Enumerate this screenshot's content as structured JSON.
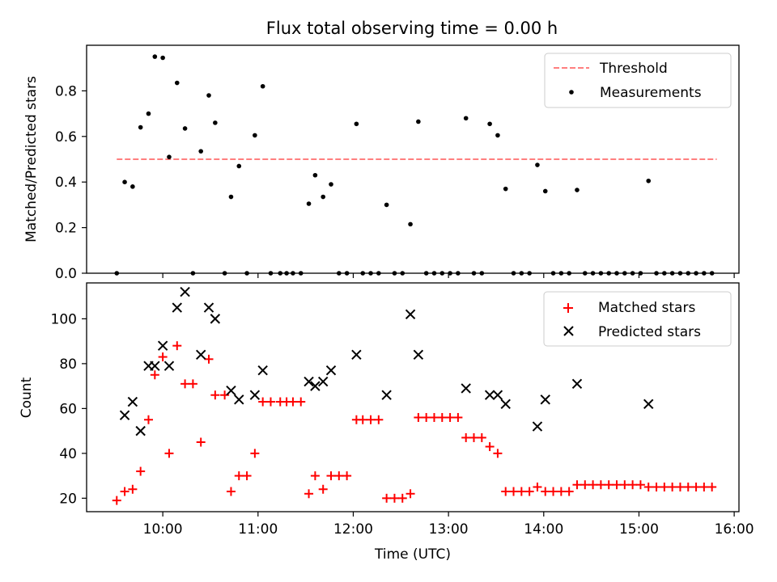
{
  "chart_data": [
    {
      "type": "scatter",
      "title": "Flux total observing time = 0.00 h",
      "xlabel": "",
      "ylabel": "Matched/Predicted stars",
      "ylim": [
        0,
        1.0
      ],
      "yticks": [
        "0.0",
        "0.2",
        "0.4",
        "0.6",
        "0.8"
      ],
      "xlim": [
        "09:12",
        "16:03"
      ],
      "grid": false,
      "legend": "top-right",
      "series": [
        {
          "name": "Threshold",
          "kind": "line",
          "color": "#ff7f7f",
          "style": "dashed",
          "x": [
            "09:31",
            "15:49"
          ],
          "y": [
            0.5,
            0.5
          ]
        },
        {
          "name": "Measurements",
          "kind": "scatter",
          "color": "#000000",
          "marker": "dot",
          "points": [
            [
              "09:31",
              0
            ],
            [
              "09:36",
              0.4
            ],
            [
              "09:41",
              0.38
            ],
            [
              "09:46",
              0.64
            ],
            [
              "09:51",
              0.7
            ],
            [
              "09:55",
              0.95
            ],
            [
              "10:00",
              0.945
            ],
            [
              "10:04",
              0.51
            ],
            [
              "10:09",
              0.835
            ],
            [
              "10:14",
              0.635
            ],
            [
              "10:19",
              0
            ],
            [
              "10:24",
              0.535
            ],
            [
              "10:29",
              0.78
            ],
            [
              "10:33",
              0.66
            ],
            [
              "10:39",
              0
            ],
            [
              "10:43",
              0.335
            ],
            [
              "10:48",
              0.47
            ],
            [
              "10:53",
              0
            ],
            [
              "10:58",
              0.605
            ],
            [
              "11:03",
              0.82
            ],
            [
              "11:08",
              0
            ],
            [
              "11:14",
              0
            ],
            [
              "11:18",
              0
            ],
            [
              "11:22",
              0
            ],
            [
              "11:27",
              0
            ],
            [
              "11:32",
              0.305
            ],
            [
              "11:36",
              0.43
            ],
            [
              "11:41",
              0.335
            ],
            [
              "11:46",
              0.39
            ],
            [
              "11:51",
              0
            ],
            [
              "11:56",
              0
            ],
            [
              "12:02",
              0.655
            ],
            [
              "12:06",
              0
            ],
            [
              "12:11",
              0
            ],
            [
              "12:16",
              0
            ],
            [
              "12:21",
              0.3
            ],
            [
              "12:26",
              0
            ],
            [
              "12:31",
              0
            ],
            [
              "12:36",
              0.215
            ],
            [
              "12:41",
              0.665
            ],
            [
              "12:46",
              0
            ],
            [
              "12:51",
              0
            ],
            [
              "12:56",
              0
            ],
            [
              "13:01",
              0
            ],
            [
              "13:06",
              0
            ],
            [
              "13:11",
              0.68
            ],
            [
              "13:16",
              0
            ],
            [
              "13:21",
              0
            ],
            [
              "13:26",
              0.655
            ],
            [
              "13:31",
              0.605
            ],
            [
              "13:36",
              0.37
            ],
            [
              "13:41",
              0
            ],
            [
              "13:46",
              0
            ],
            [
              "13:51",
              0
            ],
            [
              "13:56",
              0.475
            ],
            [
              "14:01",
              0.36
            ],
            [
              "14:06",
              0
            ],
            [
              "14:11",
              0
            ],
            [
              "14:16",
              0
            ],
            [
              "14:21",
              0.365
            ],
            [
              "14:26",
              0
            ],
            [
              "14:31",
              0
            ],
            [
              "14:36",
              0
            ],
            [
              "14:41",
              0
            ],
            [
              "14:46",
              0
            ],
            [
              "14:51",
              0
            ],
            [
              "14:56",
              0
            ],
            [
              "15:01",
              0
            ],
            [
              "15:06",
              0.405
            ],
            [
              "15:11",
              0
            ],
            [
              "15:16",
              0
            ],
            [
              "15:21",
              0
            ],
            [
              "15:26",
              0
            ],
            [
              "15:31",
              0
            ],
            [
              "15:36",
              0
            ],
            [
              "15:41",
              0
            ],
            [
              "15:46",
              0
            ]
          ]
        }
      ]
    },
    {
      "type": "scatter",
      "title": "",
      "xlabel": "Time (UTC)",
      "ylabel": "Count",
      "ylim": [
        14,
        116
      ],
      "yticks": [
        "20",
        "40",
        "60",
        "80",
        "100"
      ],
      "xlim": [
        "09:12",
        "16:03"
      ],
      "xticks": [
        "10:00",
        "11:00",
        "12:00",
        "13:00",
        "14:00",
        "15:00",
        "16:00"
      ],
      "grid": false,
      "legend": "top-right",
      "series": [
        {
          "name": "Matched stars",
          "kind": "scatter",
          "color": "#ff0000",
          "marker": "plus",
          "points": [
            [
              "09:31",
              19
            ],
            [
              "09:36",
              23
            ],
            [
              "09:41",
              24
            ],
            [
              "09:46",
              32
            ],
            [
              "09:51",
              55
            ],
            [
              "09:55",
              75
            ],
            [
              "10:00",
              83
            ],
            [
              "10:04",
              40
            ],
            [
              "10:09",
              88
            ],
            [
              "10:14",
              71
            ],
            [
              "10:19",
              71
            ],
            [
              "10:24",
              45
            ],
            [
              "10:29",
              82
            ],
            [
              "10:33",
              66
            ],
            [
              "10:39",
              66
            ],
            [
              "10:43",
              23
            ],
            [
              "10:48",
              30
            ],
            [
              "10:53",
              30
            ],
            [
              "10:58",
              40
            ],
            [
              "11:03",
              63
            ],
            [
              "11:08",
              63
            ],
            [
              "11:14",
              63
            ],
            [
              "11:18",
              63
            ],
            [
              "11:22",
              63
            ],
            [
              "11:27",
              63
            ],
            [
              "11:32",
              22
            ],
            [
              "11:36",
              30
            ],
            [
              "11:41",
              24
            ],
            [
              "11:46",
              30
            ],
            [
              "11:51",
              30
            ],
            [
              "11:56",
              30
            ],
            [
              "12:02",
              55
            ],
            [
              "12:06",
              55
            ],
            [
              "12:11",
              55
            ],
            [
              "12:16",
              55
            ],
            [
              "12:21",
              20
            ],
            [
              "12:26",
              20
            ],
            [
              "12:31",
              20
            ],
            [
              "12:36",
              22
            ],
            [
              "12:41",
              56
            ],
            [
              "12:46",
              56
            ],
            [
              "12:51",
              56
            ],
            [
              "12:56",
              56
            ],
            [
              "13:01",
              56
            ],
            [
              "13:06",
              56
            ],
            [
              "13:11",
              47
            ],
            [
              "13:16",
              47
            ],
            [
              "13:21",
              47
            ],
            [
              "13:26",
              43
            ],
            [
              "13:31",
              40
            ],
            [
              "13:36",
              23
            ],
            [
              "13:41",
              23
            ],
            [
              "13:46",
              23
            ],
            [
              "13:51",
              23
            ],
            [
              "13:56",
              25
            ],
            [
              "14:01",
              23
            ],
            [
              "14:06",
              23
            ],
            [
              "14:11",
              23
            ],
            [
              "14:16",
              23
            ],
            [
              "14:21",
              26
            ],
            [
              "14:26",
              26
            ],
            [
              "14:31",
              26
            ],
            [
              "14:36",
              26
            ],
            [
              "14:41",
              26
            ],
            [
              "14:46",
              26
            ],
            [
              "14:51",
              26
            ],
            [
              "14:56",
              26
            ],
            [
              "15:01",
              26
            ],
            [
              "15:06",
              25
            ],
            [
              "15:11",
              25
            ],
            [
              "15:16",
              25
            ],
            [
              "15:21",
              25
            ],
            [
              "15:26",
              25
            ],
            [
              "15:31",
              25
            ],
            [
              "15:36",
              25
            ],
            [
              "15:41",
              25
            ],
            [
              "15:46",
              25
            ]
          ]
        },
        {
          "name": "Predicted stars",
          "kind": "scatter",
          "color": "#000000",
          "marker": "cross",
          "points": [
            [
              "09:36",
              57
            ],
            [
              "09:41",
              63
            ],
            [
              "09:46",
              50
            ],
            [
              "09:51",
              79
            ],
            [
              "09:55",
              79
            ],
            [
              "10:00",
              88
            ],
            [
              "10:04",
              79
            ],
            [
              "10:09",
              105
            ],
            [
              "10:14",
              112
            ],
            [
              "10:24",
              84
            ],
            [
              "10:29",
              105
            ],
            [
              "10:33",
              100
            ],
            [
              "10:43",
              68
            ],
            [
              "10:48",
              64
            ],
            [
              "10:58",
              66
            ],
            [
              "11:03",
              77
            ],
            [
              "11:32",
              72
            ],
            [
              "11:36",
              70
            ],
            [
              "11:41",
              72
            ],
            [
              "11:46",
              77
            ],
            [
              "12:02",
              84
            ],
            [
              "12:21",
              66
            ],
            [
              "12:36",
              102
            ],
            [
              "12:41",
              84
            ],
            [
              "13:11",
              69
            ],
            [
              "13:26",
              66
            ],
            [
              "13:31",
              66
            ],
            [
              "13:36",
              62
            ],
            [
              "13:56",
              52
            ],
            [
              "14:01",
              64
            ],
            [
              "14:21",
              71
            ],
            [
              "15:06",
              62
            ]
          ]
        }
      ]
    }
  ]
}
